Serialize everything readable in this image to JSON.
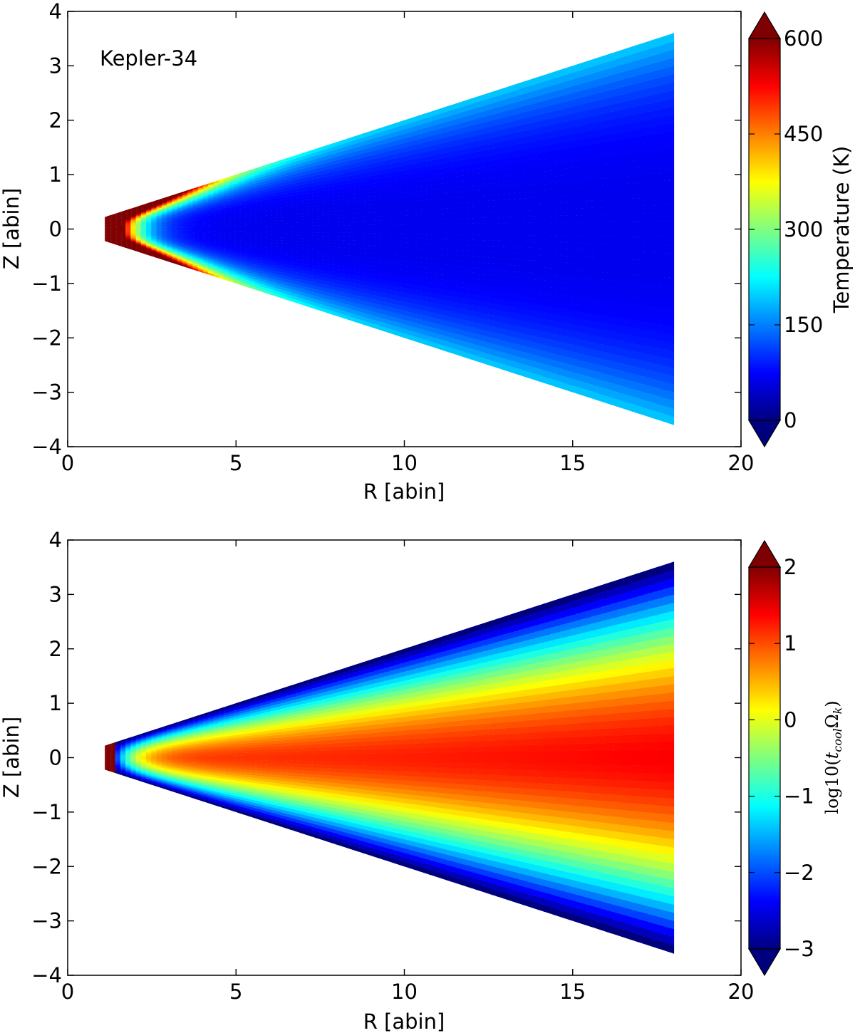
{
  "colormap": [
    "#00007f",
    "#0000ff",
    "#007fff",
    "#00ffff",
    "#7fff7f",
    "#ffff00",
    "#ff7f00",
    "#ff0000",
    "#7f0000"
  ],
  "chart_data": [
    {
      "type": "heatmap",
      "annotation": "Kepler-34",
      "xlabel": "R [abin]",
      "ylabel": "Z [abin]",
      "xlim": [
        0,
        20
      ],
      "ylim": [
        -4,
        4
      ],
      "xticks": [
        0,
        5,
        10,
        15,
        20
      ],
      "yticks": [
        4,
        3,
        2,
        1,
        0,
        -1,
        -2,
        -3,
        -4
      ],
      "domain": {
        "r_inner": 1.1,
        "r_outer": 18.0,
        "z_over_r": 0.2
      },
      "colorbar": {
        "label": "Temperature (K)",
        "range": [
          0,
          600
        ],
        "ticks": [
          0,
          150,
          300,
          450,
          600
        ],
        "extend": "both",
        "placement": "right"
      },
      "field_description": "Hot (>600 K) at inner edge R≈1.1–2.5; mid-plane cools to ≈150 K by R≈5 and ≈70 K at R≈18; disk surface warmer (≈400 K near R≈3, ≈250 K near R≈17)"
    },
    {
      "type": "heatmap",
      "xlabel": "R [abin]",
      "ylabel": "Z [abin]",
      "xlim": [
        0,
        20
      ],
      "ylim": [
        -4,
        4
      ],
      "xticks": [
        0,
        5,
        10,
        15,
        20
      ],
      "yticks": [
        4,
        3,
        2,
        1,
        0,
        -1,
        -2,
        -3,
        -4
      ],
      "domain": {
        "r_inner": 1.1,
        "r_outer": 18.0,
        "z_over_r": 0.2
      },
      "colorbar": {
        "label": "log10(t_cool Ω_k)",
        "label_parts": {
          "prefix": "log10(",
          "t": "t",
          "t_sub": "cool",
          "omega": "Ω",
          "omega_sub": "k",
          "suffix": ")"
        },
        "range": [
          -3,
          2
        ],
        "ticks": [
          -3,
          -2,
          -1,
          0,
          1,
          2
        ],
        "extend": "both",
        "placement": "right"
      },
      "field_description": "Mid-plane ≈1 to 1.5 (orange-red), decreasing toward surface to ≈-3 (dark blue); inner edge ≈2"
    }
  ]
}
